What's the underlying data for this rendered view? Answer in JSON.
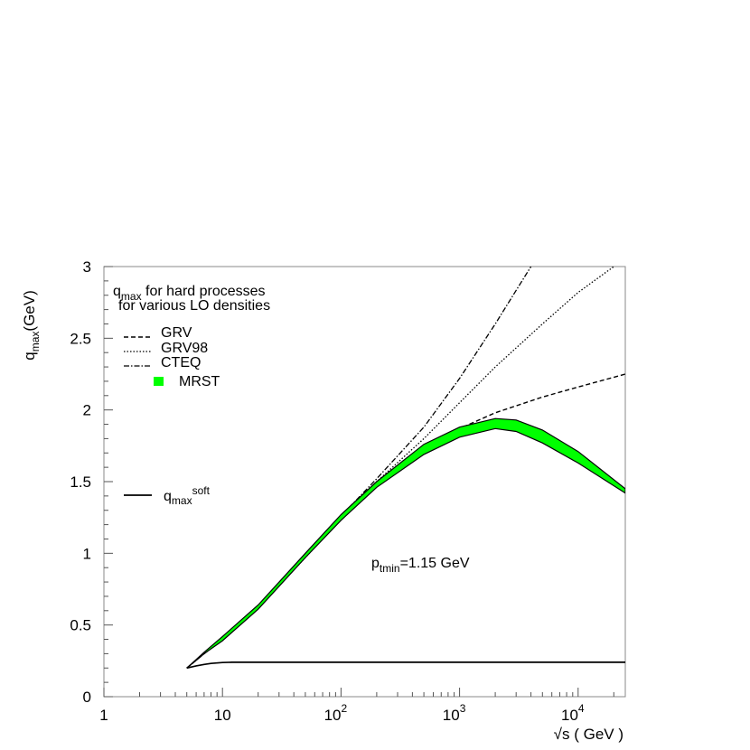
{
  "chart_data": {
    "type": "line",
    "title_line1_main": "q",
    "title_line1_sub": "max",
    "title_line1_rest": " for hard processes",
    "title_line2": "for various LO densities",
    "ylabel_main": "q",
    "ylabel_sub": "max",
    "ylabel_rest": "(GeV)",
    "xlabel": "√s ( GeV )",
    "x_scale": "log",
    "xlim": [
      1,
      25000
    ],
    "ylim": [
      0,
      3
    ],
    "y_ticks": [
      "0",
      "0.5",
      "1",
      "1.5",
      "2",
      "2.5",
      "3"
    ],
    "x_tick_labels": [
      {
        "value": 1,
        "base": "1",
        "exp": ""
      },
      {
        "value": 10,
        "base": "10",
        "exp": ""
      },
      {
        "value": 100,
        "base": "10",
        "exp": "2"
      },
      {
        "value": 1000,
        "base": "10",
        "exp": "3"
      },
      {
        "value": 10000,
        "base": "10",
        "exp": "4"
      }
    ],
    "annotation_main": "p",
    "annotation_sub": "tmin",
    "annotation_rest": "=1.15 GeV",
    "legend": {
      "placement": "top-left",
      "items": [
        {
          "label": "GRV",
          "style": "dashed"
        },
        {
          "label": "GRV98",
          "style": "dotted"
        },
        {
          "label": "CTEQ",
          "style": "dashdot"
        },
        {
          "label": "MRST",
          "style": "band",
          "color": "#00ff00"
        }
      ],
      "soft_main": "q",
      "soft_sub": "max",
      "soft_sup": "soft"
    },
    "series": [
      {
        "name": "GRV",
        "style": "dashed",
        "x": [
          5,
          7,
          10,
          20,
          50,
          100,
          200,
          500,
          1000,
          2000,
          5000,
          10000,
          25000
        ],
        "y": [
          0.2,
          0.3,
          0.4,
          0.62,
          0.98,
          1.25,
          1.5,
          1.72,
          1.87,
          1.98,
          2.09,
          2.16,
          2.25
        ]
      },
      {
        "name": "GRV98",
        "style": "dotted",
        "x": [
          5,
          7,
          10,
          20,
          50,
          100,
          200,
          500,
          1000,
          2000,
          5000,
          10000,
          20000
        ],
        "y": [
          0.2,
          0.3,
          0.4,
          0.62,
          0.97,
          1.24,
          1.5,
          1.8,
          2.05,
          2.3,
          2.6,
          2.82,
          3.0
        ]
      },
      {
        "name": "CTEQ",
        "style": "dashdot",
        "x": [
          5,
          7,
          10,
          20,
          50,
          100,
          200,
          500,
          1000,
          2000,
          4000
        ],
        "y": [
          0.2,
          0.3,
          0.4,
          0.62,
          0.98,
          1.26,
          1.52,
          1.88,
          2.22,
          2.6,
          3.0
        ]
      },
      {
        "name": "MRST",
        "style": "band",
        "color": "#00ff00",
        "x": [
          5,
          7,
          10,
          20,
          50,
          100,
          200,
          500,
          1000,
          2000,
          3000,
          5000,
          10000,
          25000
        ],
        "y_low": [
          0.2,
          0.3,
          0.39,
          0.61,
          0.97,
          1.23,
          1.46,
          1.69,
          1.81,
          1.87,
          1.85,
          1.77,
          1.63,
          1.42
        ],
        "y_high": [
          0.2,
          0.31,
          0.42,
          0.64,
          1.0,
          1.27,
          1.5,
          1.76,
          1.88,
          1.94,
          1.93,
          1.86,
          1.71,
          1.45
        ]
      },
      {
        "name": "soft",
        "style": "solid",
        "x": [
          5,
          6,
          7,
          8,
          10,
          12,
          15,
          100,
          1000,
          10000,
          25000
        ],
        "y": [
          0.2,
          0.215,
          0.225,
          0.232,
          0.238,
          0.24,
          0.24,
          0.24,
          0.24,
          0.24,
          0.24
        ]
      }
    ]
  }
}
